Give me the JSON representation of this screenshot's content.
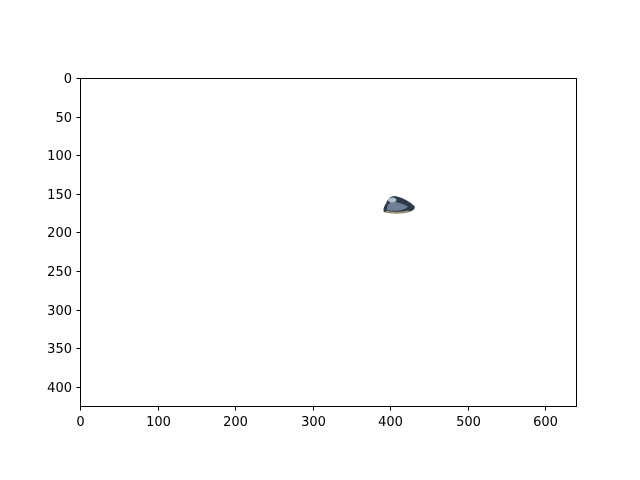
{
  "chart_data": {
    "type": "image",
    "title": "",
    "xlabel": "",
    "ylabel": "",
    "xlim": [
      0,
      640
    ],
    "ylim": [
      425,
      0
    ],
    "y_inverted": true,
    "grid": false,
    "x_ticks": [
      0,
      100,
      200,
      300,
      400,
      500,
      600
    ],
    "x_tick_labels": [
      "0",
      "100",
      "200",
      "300",
      "400",
      "500",
      "600"
    ],
    "y_ticks": [
      0,
      50,
      100,
      150,
      200,
      250,
      300,
      350,
      400
    ],
    "y_tick_labels": [
      "0",
      "50",
      "100",
      "150",
      "200",
      "250",
      "300",
      "350",
      "400"
    ],
    "object": {
      "icon": "mussel-shell-icon",
      "x_range": [
        390,
        433
      ],
      "y_range": [
        150,
        177
      ],
      "colors": {
        "shell_dark": "#2f3a4a",
        "shell_mid": "#6f8096",
        "highlight": "#c8d6e8",
        "edge": "#9a8f78"
      }
    }
  }
}
